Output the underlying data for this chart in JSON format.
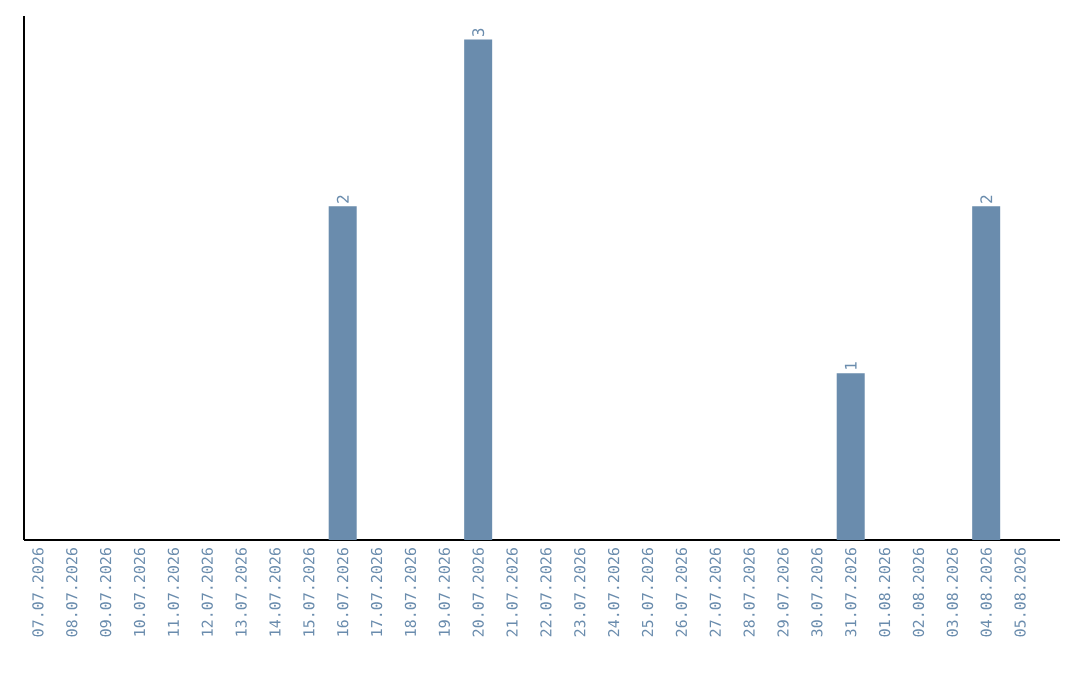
{
  "chart_data": {
    "type": "bar",
    "categories": [
      "07.07.2026",
      "08.07.2026",
      "09.07.2026",
      "10.07.2026",
      "11.07.2026",
      "12.07.2026",
      "13.07.2026",
      "14.07.2026",
      "15.07.2026",
      "16.07.2026",
      "17.07.2026",
      "18.07.2026",
      "19.07.2026",
      "20.07.2026",
      "21.07.2026",
      "22.07.2026",
      "23.07.2026",
      "24.07.2026",
      "25.07.2026",
      "26.07.2026",
      "27.07.2026",
      "28.07.2026",
      "29.07.2026",
      "30.07.2026",
      "31.07.2026",
      "01.08.2026",
      "02.08.2026",
      "03.08.2026",
      "04.08.2026",
      "05.08.2026"
    ],
    "values": [
      0,
      0,
      0,
      0,
      0,
      0,
      0,
      0,
      0,
      2,
      0,
      0,
      0,
      3,
      0,
      0,
      0,
      0,
      0,
      0,
      0,
      0,
      0,
      0,
      1,
      0,
      0,
      0,
      2,
      0
    ],
    "value_labels": [
      null,
      null,
      null,
      null,
      null,
      null,
      null,
      null,
      null,
      "2",
      null,
      null,
      null,
      "3",
      null,
      null,
      null,
      null,
      null,
      null,
      null,
      null,
      null,
      null,
      "1",
      null,
      null,
      null,
      "2",
      null
    ],
    "color": "#6a8cad"
  }
}
